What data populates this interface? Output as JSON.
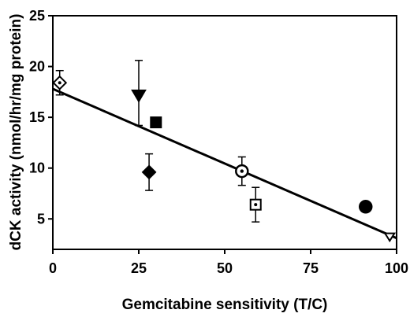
{
  "chart_data": {
    "type": "scatter",
    "title": "",
    "xlabel": "Gemcitabine sensitivity (T/C)",
    "ylabel": "dCK activity (nmol/hr/mg protein)",
    "xlim": [
      0,
      100
    ],
    "ylim": [
      2,
      25
    ],
    "xticks": [
      "0",
      "25",
      "50",
      "75",
      "100"
    ],
    "yticks": [
      "5",
      "10",
      "15",
      "20",
      "25"
    ],
    "grid": false,
    "legend": "none",
    "series": [
      {
        "marker": "diamond-open",
        "x": 2,
        "y": 18.4,
        "err_up": 1.2,
        "err_down": 1.2
      },
      {
        "marker": "triangle-down",
        "x": 25,
        "y": 17.2,
        "err_up": 3.4,
        "err_down": 3.0
      },
      {
        "marker": "square",
        "x": 30,
        "y": 14.5,
        "err_up": 0,
        "err_down": 0
      },
      {
        "marker": "diamond",
        "x": 28,
        "y": 9.6,
        "err_up": 1.8,
        "err_down": 1.8
      },
      {
        "marker": "circle-open",
        "x": 55,
        "y": 9.7,
        "err_up": 1.4,
        "err_down": 1.4
      },
      {
        "marker": "square-open",
        "x": 59,
        "y": 6.4,
        "err_up": 1.7,
        "err_down": 1.7
      },
      {
        "marker": "circle",
        "x": 91,
        "y": 6.2,
        "err_up": 0,
        "err_down": 0
      },
      {
        "marker": "triangle-open",
        "x": 98,
        "y": 3.3,
        "err_up": 0,
        "err_down": 0
      }
    ],
    "fit_line": {
      "x": [
        0,
        100
      ],
      "y": [
        17.8,
        3.1
      ]
    }
  }
}
